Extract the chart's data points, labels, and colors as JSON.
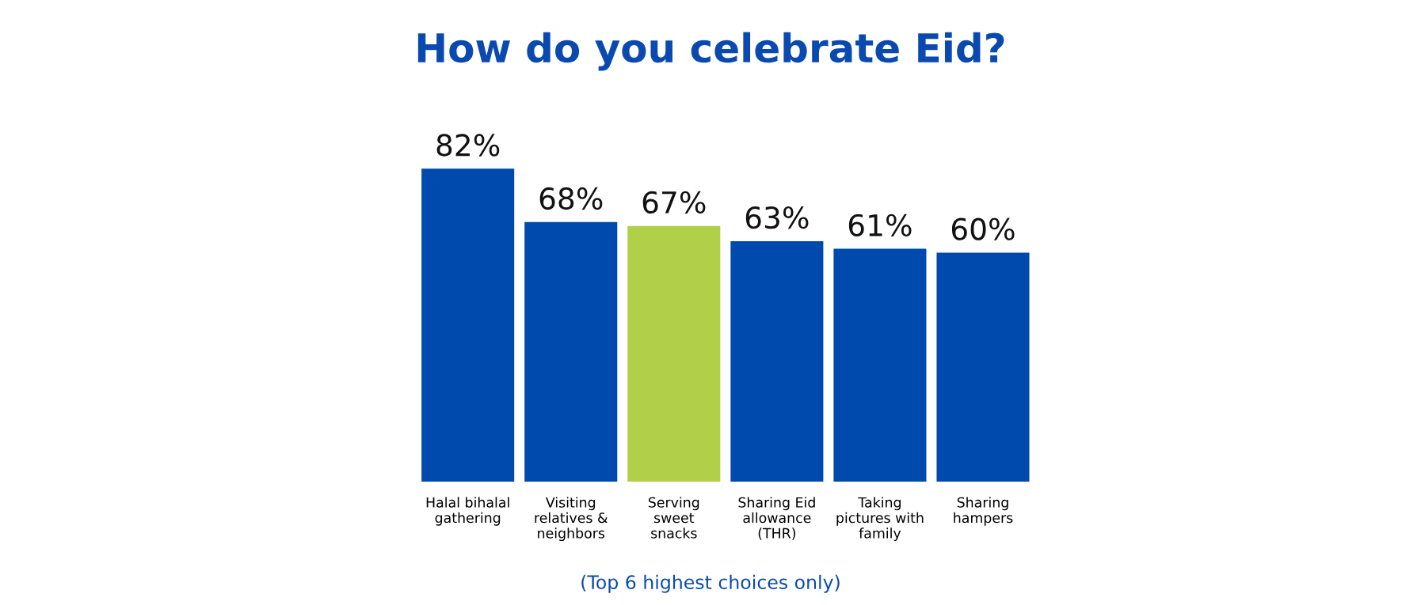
{
  "chart_data": {
    "type": "bar",
    "title": "How do you celebrate Eid?",
    "categories": [
      "Halal bihalal\ngathering",
      "Visiting\nrelatives &\nneighbors",
      "Serving\nsweet\nsnacks",
      "Sharing Eid\nallowance\n(THR)",
      "Taking\npictures with\nfamily",
      "Sharing\nhampers"
    ],
    "values": [
      82,
      68,
      67,
      63,
      61,
      60
    ],
    "colors": [
      "#004aad",
      "#004aad",
      "#b2cf4a",
      "#004aad",
      "#004aad",
      "#004aad"
    ],
    "value_labels": [
      "82%",
      "68%",
      "67%",
      "63%",
      "61%",
      "60%"
    ],
    "grid": false,
    "legend": false,
    "annotations": [
      "(Top 6 highest choices only)"
    ]
  }
}
